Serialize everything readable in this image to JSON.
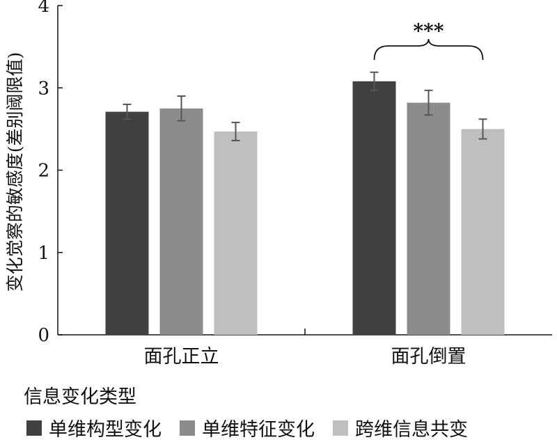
{
  "chart_data": {
    "type": "bar",
    "categories": [
      "面孔正立",
      "面孔倒置"
    ],
    "series": [
      {
        "name": "单维构型变化",
        "color": "#404040",
        "values": [
          2.71,
          3.08
        ],
        "errors": [
          0.09,
          0.11
        ]
      },
      {
        "name": "单维特征变化",
        "color": "#8c8c8c",
        "values": [
          2.75,
          2.82
        ],
        "errors": [
          0.15,
          0.15
        ]
      },
      {
        "name": "跨维信息共变",
        "color": "#bfbfbf",
        "values": [
          2.47,
          2.5
        ],
        "errors": [
          0.11,
          0.12
        ]
      }
    ],
    "title": "",
    "xlabel": "",
    "ylabel": "变化觉察的敏感度(差别阈限值)",
    "ylim": [
      0,
      4
    ],
    "yticks": [
      0,
      1,
      2,
      3,
      4
    ],
    "grid": false,
    "annotations": [
      {
        "text": "***",
        "category_index": 1,
        "from_series": 0,
        "to_series": 2
      }
    ],
    "legend_title": "信息变化类型",
    "legend_position": "bottom"
  }
}
